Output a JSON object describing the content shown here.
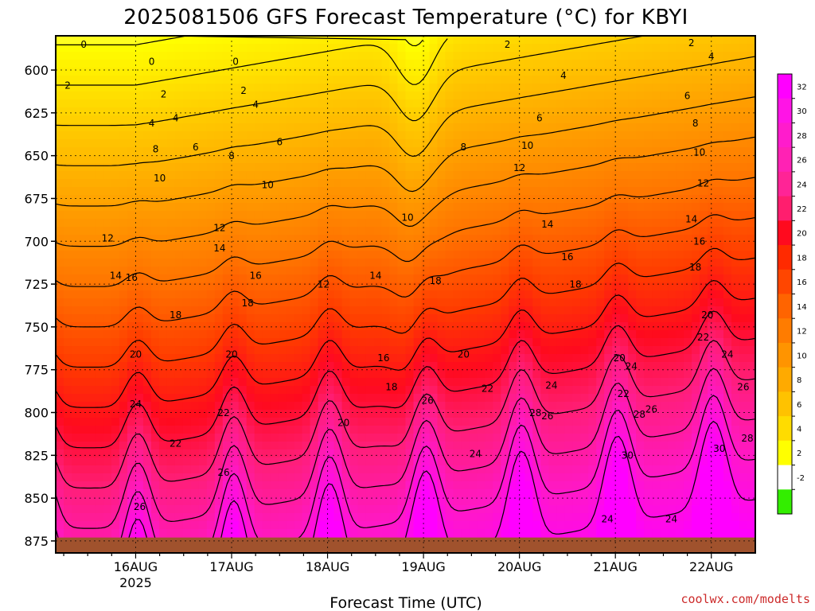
{
  "chart_data": {
    "type": "heatmap",
    "title": "2025081506 GFS Forecast Temperature (°C) for KBYI",
    "xlabel": "Forecast Time (UTC)",
    "ylabel": "",
    "credit": "coolwx.com/modelts",
    "y_axis": {
      "ticks": [
        600,
        625,
        650,
        675,
        700,
        725,
        750,
        775,
        800,
        825,
        850,
        875
      ],
      "range": [
        580,
        882
      ],
      "inverted": true,
      "grid": "dotted"
    },
    "x_axis": {
      "range_hours": [
        -20,
        155
      ],
      "ticks": [
        {
          "label": "16AUG",
          "sublabel": "2025",
          "hour": 0
        },
        {
          "label": "17AUG",
          "sublabel": "",
          "hour": 24
        },
        {
          "label": "18AUG",
          "sublabel": "",
          "hour": 48
        },
        {
          "label": "19AUG",
          "sublabel": "",
          "hour": 72
        },
        {
          "label": "20AUG",
          "sublabel": "",
          "hour": 96
        },
        {
          "label": "21AUG",
          "sublabel": "",
          "hour": 120
        },
        {
          "label": "22AUG",
          "sublabel": "",
          "hour": 144
        }
      ],
      "grid": "dotted"
    },
    "colorbar": {
      "labels": [
        "32",
        "30",
        "28",
        "26",
        "24",
        "22",
        "20",
        "18",
        "16",
        "14",
        "12",
        "10",
        "8",
        "6",
        "4",
        "2",
        "-2"
      ],
      "colors": [
        "#ff00ff",
        "#ff14e6",
        "#ff1ccc",
        "#ff22b4",
        "#ff2496",
        "#ff1e6e",
        "#ff0a1e",
        "#ff2a00",
        "#ff4600",
        "#ff6400",
        "#ff7c00",
        "#ff9400",
        "#ffaa00",
        "#ffc200",
        "#ffdc00",
        "#ffff00",
        "#ffffff",
        "#33ee00"
      ]
    },
    "contour_levels": [
      0,
      2,
      4,
      6,
      8,
      10,
      12,
      14,
      16,
      18,
      20,
      22,
      24,
      26,
      28,
      30
    ],
    "contour_labels": [
      {
        "v": "0",
        "t": -13,
        "p": 587
      },
      {
        "v": "0",
        "t": 4,
        "p": 597
      },
      {
        "v": "0",
        "t": 25,
        "p": 597
      },
      {
        "v": "2",
        "t": -17,
        "p": 611
      },
      {
        "v": "2",
        "t": 7,
        "p": 616
      },
      {
        "v": "2",
        "t": 27,
        "p": 614
      },
      {
        "v": "2",
        "t": 93,
        "p": 587
      },
      {
        "v": "2",
        "t": 139,
        "p": 586
      },
      {
        "v": "4",
        "t": 144,
        "p": 594
      },
      {
        "v": "4",
        "t": 4,
        "p": 633
      },
      {
        "v": "4",
        "t": 10,
        "p": 630
      },
      {
        "v": "4",
        "t": 30,
        "p": 622
      },
      {
        "v": "4",
        "t": 107,
        "p": 605
      },
      {
        "v": "6",
        "t": 15,
        "p": 647
      },
      {
        "v": "6",
        "t": 36,
        "p": 644
      },
      {
        "v": "6",
        "t": 101,
        "p": 630
      },
      {
        "v": "6",
        "t": 138,
        "p": 617
      },
      {
        "v": "8",
        "t": 5,
        "p": 648
      },
      {
        "v": "8",
        "t": 24,
        "p": 652
      },
      {
        "v": "8",
        "t": 82,
        "p": 647
      },
      {
        "v": "8",
        "t": 140,
        "p": 633
      },
      {
        "v": "10",
        "t": 6,
        "p": 665
      },
      {
        "v": "10",
        "t": 33,
        "p": 669
      },
      {
        "v": "10",
        "t": 68,
        "p": 688
      },
      {
        "v": "10",
        "t": 98,
        "p": 646
      },
      {
        "v": "10",
        "t": 141,
        "p": 650
      },
      {
        "v": "12",
        "t": -7,
        "p": 700
      },
      {
        "v": "12",
        "t": 21,
        "p": 694
      },
      {
        "v": "12",
        "t": 47,
        "p": 727
      },
      {
        "v": "12",
        "t": 96,
        "p": 659
      },
      {
        "v": "12",
        "t": 142,
        "p": 668
      },
      {
        "v": "14",
        "t": -5,
        "p": 722
      },
      {
        "v": "14",
        "t": 21,
        "p": 706
      },
      {
        "v": "14",
        "t": 60,
        "p": 722
      },
      {
        "v": "14",
        "t": 103,
        "p": 692
      },
      {
        "v": "14",
        "t": 139,
        "p": 689
      },
      {
        "v": "16",
        "t": -1,
        "p": 723
      },
      {
        "v": "16",
        "t": 30,
        "p": 722
      },
      {
        "v": "16",
        "t": 62,
        "p": 770
      },
      {
        "v": "16",
        "t": 108,
        "p": 711
      },
      {
        "v": "16",
        "t": 141,
        "p": 702
      },
      {
        "v": "18",
        "t": 10,
        "p": 745
      },
      {
        "v": "18",
        "t": 28,
        "p": 738
      },
      {
        "v": "18",
        "t": 64,
        "p": 787
      },
      {
        "v": "18",
        "t": 75,
        "p": 725
      },
      {
        "v": "18",
        "t": 110,
        "p": 727
      },
      {
        "v": "18",
        "t": 140,
        "p": 717
      },
      {
        "v": "20",
        "t": 0,
        "p": 768
      },
      {
        "v": "20",
        "t": 24,
        "p": 768
      },
      {
        "v": "20",
        "t": 52,
        "p": 808
      },
      {
        "v": "20",
        "t": 82,
        "p": 768
      },
      {
        "v": "20",
        "t": 121,
        "p": 770
      },
      {
        "v": "20",
        "t": 143,
        "p": 745
      },
      {
        "v": "22",
        "t": 10,
        "p": 820
      },
      {
        "v": "22",
        "t": 22,
        "p": 802
      },
      {
        "v": "22",
        "t": 88,
        "p": 788
      },
      {
        "v": "22",
        "t": 122,
        "p": 791
      },
      {
        "v": "22",
        "t": 142,
        "p": 758
      },
      {
        "v": "24",
        "t": 0,
        "p": 797
      },
      {
        "v": "24",
        "t": 85,
        "p": 826
      },
      {
        "v": "24",
        "t": 104,
        "p": 786
      },
      {
        "v": "24",
        "t": 118,
        "p": 864
      },
      {
        "v": "24",
        "t": 134,
        "p": 864
      },
      {
        "v": "24",
        "t": 124,
        "p": 775
      },
      {
        "v": "24",
        "t": 148,
        "p": 768
      },
      {
        "v": "26",
        "t": 1,
        "p": 857
      },
      {
        "v": "26",
        "t": 22,
        "p": 837
      },
      {
        "v": "26",
        "t": 73,
        "p": 795
      },
      {
        "v": "26",
        "t": 103,
        "p": 804
      },
      {
        "v": "26",
        "t": 129,
        "p": 800
      },
      {
        "v": "26",
        "t": 152,
        "p": 787
      },
      {
        "v": "28",
        "t": 100,
        "p": 802
      },
      {
        "v": "28",
        "t": 126,
        "p": 803
      },
      {
        "v": "28",
        "t": 153,
        "p": 817
      },
      {
        "v": "30",
        "t": 123,
        "p": 827
      },
      {
        "v": "30",
        "t": 146,
        "p": 823
      }
    ]
  }
}
